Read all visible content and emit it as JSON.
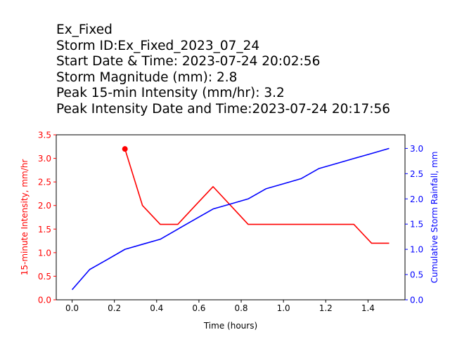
{
  "title_lines": [
    "Ex_Fixed",
    "Storm ID:Ex_Fixed_2023_07_24",
    "Start Date & Time: 2023-07-24 20:02:56",
    "Storm Magnitude (mm): 2.8",
    "Peak 15-min Intensity (mm/hr): 3.2",
    "Peak Intensity Date and Time:2023-07-24 20:17:56"
  ],
  "chart_data": {
    "type": "line",
    "xlabel": "Time (hours)",
    "ylabel_left": "15-minute Intensity, mm/hr",
    "ylabel_right": "Cumulative Storm Rainfall, mm",
    "xlim": [
      -0.075,
      1.575
    ],
    "ylim_left": [
      0,
      3.5
    ],
    "ylim_right": [
      0,
      3.27
    ],
    "x_ticks": [
      "0.0",
      "0.2",
      "0.4",
      "0.6",
      "0.8",
      "1.0",
      "1.2",
      "1.4"
    ],
    "y_ticks_left": [
      "0.0",
      "0.5",
      "1.0",
      "1.5",
      "2.0",
      "2.5",
      "3.0",
      "3.5"
    ],
    "y_ticks_right": [
      "0.0",
      "0.5",
      "1.0",
      "1.5",
      "2.0",
      "2.5",
      "3.0"
    ],
    "colors": {
      "left": "#ff0000",
      "right": "#0000ff"
    },
    "series": [
      {
        "axis": "left",
        "color": "#ff0000",
        "x": [
          0.25,
          0.333,
          0.417,
          0.5,
          0.583,
          0.667,
          0.75,
          0.833,
          0.917,
          1.0,
          1.083,
          1.167,
          1.25,
          1.333,
          1.417,
          1.5
        ],
        "values": [
          3.2,
          2.0,
          1.6,
          1.6,
          2.0,
          2.4,
          2.0,
          1.6,
          1.6,
          1.6,
          1.6,
          1.6,
          1.6,
          1.6,
          1.2,
          1.2
        ]
      },
      {
        "axis": "right",
        "color": "#0000ff",
        "x": [
          0.0,
          0.083,
          0.167,
          0.25,
          0.333,
          0.417,
          0.5,
          0.583,
          0.667,
          0.75,
          0.833,
          0.917,
          1.0,
          1.083,
          1.167,
          1.25,
          1.333,
          1.417,
          1.5
        ],
        "values": [
          0.2,
          0.6,
          0.8,
          1.0,
          1.1,
          1.2,
          1.4,
          1.6,
          1.8,
          1.9,
          2.0,
          2.2,
          2.3,
          2.4,
          2.6,
          2.7,
          2.8,
          2.9,
          3.0
        ]
      }
    ],
    "peak_marker": {
      "x": 0.25,
      "value": 3.2,
      "color": "#ff0000"
    }
  }
}
